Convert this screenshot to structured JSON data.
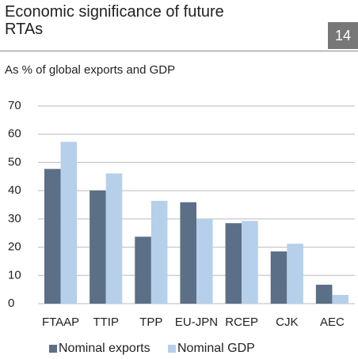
{
  "chart_data": {
    "type": "bar",
    "title": "Economic significance of future RTAs",
    "chart_number": "14",
    "subtitle": "As % of global exports and GDP",
    "categories": [
      "FTAAP",
      "TTIP",
      "TPP",
      "EU-JPN",
      "RCEP",
      "CJK",
      "AEC"
    ],
    "series": [
      {
        "name": "Nominal exports",
        "color": "#5b6f86",
        "values": [
          47.7,
          40.1,
          23.7,
          35.9,
          28.5,
          18.5,
          6.7
        ]
      },
      {
        "name": "Nominal GDP",
        "color": "#b6cfeb",
        "values": [
          57.3,
          46.1,
          36.4,
          30.0,
          29.3,
          21.2,
          3.1
        ]
      }
    ],
    "ylim": [
      0,
      70
    ],
    "yticks": [
      0,
      10,
      20,
      30,
      40,
      50,
      60,
      70
    ],
    "grid": true,
    "legend": "bottom"
  }
}
